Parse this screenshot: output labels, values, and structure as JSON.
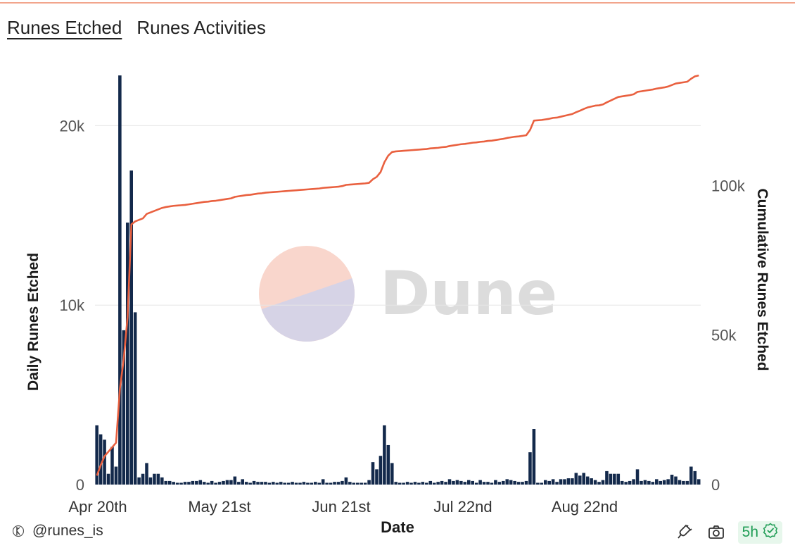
{
  "tabs": [
    {
      "label": "Runes Etched",
      "active": true
    },
    {
      "label": "Runes Activities",
      "active": false
    }
  ],
  "watermark": "Dune",
  "attribution": "@runes_is",
  "freshness": "5h",
  "colors": {
    "bar": "#13294b",
    "line": "#e9603f",
    "grid": "#e6e6e6",
    "accent_rule": "#f2a58c",
    "fresh_bg": "#e7f7ec",
    "fresh_fg": "#1f9d55"
  },
  "icons": [
    "runes-logo-icon",
    "plug-icon",
    "camera-icon",
    "check-badge-icon"
  ],
  "chart_data": {
    "type": "bar+line",
    "xlabel": "Date",
    "ylabel_left": "Daily Runes Etched",
    "ylabel_right": "Cumulative Runes Etched",
    "x_ticks": [
      "Apr 20th",
      "May 21st",
      "Jun 21st",
      "Jul 22nd",
      "Aug 22nd"
    ],
    "y_left_ticks": [
      "0",
      "10k",
      "20k"
    ],
    "y_right_ticks": [
      "0",
      "50k",
      "100k"
    ],
    "ylim_left": [
      0,
      23000
    ],
    "ylim_right": [
      0,
      138000
    ],
    "grid": true,
    "series": [
      {
        "name": "Daily Runes Etched",
        "kind": "bar",
        "axis": "left",
        "values": [
          3300,
          2800,
          2500,
          600,
          2100,
          1000,
          22800,
          8600,
          14600,
          17500,
          9600,
          400,
          600,
          1200,
          400,
          600,
          600,
          400,
          200,
          200,
          150,
          100,
          100,
          150,
          150,
          200,
          200,
          250,
          150,
          100,
          200,
          100,
          150,
          200,
          250,
          250,
          450,
          150,
          300,
          150,
          100,
          200,
          150,
          150,
          150,
          100,
          150,
          100,
          150,
          100,
          100,
          150,
          100,
          100,
          150,
          100,
          100,
          150,
          100,
          300,
          100,
          100,
          150,
          150,
          200,
          400,
          150,
          100,
          100,
          100,
          100,
          250,
          1250,
          850,
          1600,
          3300,
          2200,
          1200,
          150,
          100,
          100,
          150,
          100,
          150,
          100,
          150,
          100,
          200,
          100,
          150,
          200,
          150,
          300,
          200,
          250,
          200,
          150,
          250,
          200,
          100,
          250,
          150,
          150,
          100,
          250,
          150,
          200,
          300,
          250,
          200,
          150,
          150,
          200,
          1800,
          3100,
          100,
          100,
          250,
          200,
          300,
          150,
          300,
          300,
          350,
          350,
          650,
          500,
          650,
          450,
          350,
          250,
          150,
          250,
          750,
          600,
          600,
          600,
          200,
          150,
          200,
          300,
          850,
          200,
          250,
          200,
          150,
          300,
          200,
          250,
          300,
          550,
          450,
          250,
          200,
          200,
          1000,
          750,
          300
        ],
        "start_date": "Apr 20th"
      },
      {
        "name": "Cumulative Runes Etched",
        "kind": "line",
        "axis": "right",
        "values": [
          3000,
          6500,
          9500,
          11000,
          12500,
          14000,
          32000,
          42000,
          56000,
          87000,
          88000,
          88500,
          89000,
          90500,
          91000,
          91500,
          92000,
          92500,
          92800,
          93000,
          93200,
          93300,
          93400,
          93500,
          93700,
          93900,
          94100,
          94300,
          94500,
          94600,
          94800,
          94900,
          95100,
          95300,
          95500,
          95700,
          96200,
          96400,
          96600,
          96800,
          96900,
          97100,
          97300,
          97400,
          97600,
          97700,
          97800,
          97900,
          98000,
          98100,
          98200,
          98300,
          98400,
          98500,
          98600,
          98700,
          98800,
          98900,
          99000,
          99200,
          99300,
          99400,
          99500,
          99600,
          99800,
          100200,
          100300,
          100400,
          100500,
          100600,
          100700,
          100900,
          102100,
          102900,
          104500,
          107800,
          110000,
          111200,
          111400,
          111500,
          111600,
          111700,
          111800,
          111900,
          112000,
          112100,
          112200,
          112400,
          112500,
          112600,
          112800,
          112900,
          113200,
          113400,
          113600,
          113800,
          113900,
          114100,
          114300,
          114400,
          114600,
          114700,
          114900,
          115000,
          115200,
          115400,
          115600,
          115900,
          116100,
          116300,
          116400,
          116600,
          116800,
          118600,
          121700,
          121800,
          121900,
          122100,
          122300,
          122600,
          122700,
          123000,
          123300,
          123600,
          123900,
          124500,
          125000,
          125600,
          126100,
          126400,
          126700,
          126800,
          127100,
          127800,
          128400,
          129000,
          129600,
          129800,
          130000,
          130200,
          130500,
          131300,
          131500,
          131700,
          131900,
          132100,
          132400,
          132600,
          132800,
          133100,
          133600,
          134100,
          134300,
          134500,
          134700,
          135700,
          136500,
          136800
        ]
      }
    ]
  }
}
